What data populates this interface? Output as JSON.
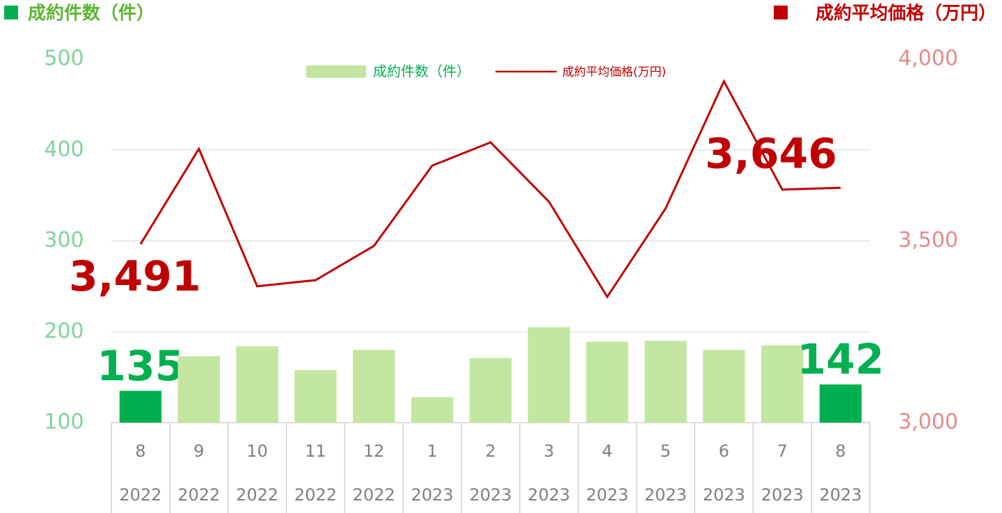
{
  "chart_data": {
    "type": "bar-line",
    "left_axis_title": "成約件数（件）",
    "right_axis_title": "成約平均価格（万円）",
    "categories": [
      "8",
      "9",
      "10",
      "11",
      "12",
      "1",
      "2",
      "3",
      "4",
      "5",
      "6",
      "7",
      "8"
    ],
    "category_years": [
      "2022",
      "2022",
      "2022",
      "2022",
      "2022",
      "2023",
      "2023",
      "2023",
      "2023",
      "2023",
      "2023",
      "2023",
      "2023"
    ],
    "series": [
      {
        "name": "成約件数（件）",
        "type": "bar",
        "color": "#c3e6a0",
        "highlight_color": "#00b050",
        "labeled": [
          0,
          12
        ],
        "values": [
          135,
          173,
          184,
          158,
          180,
          128,
          171,
          205,
          189,
          190,
          180,
          185,
          142
        ]
      },
      {
        "name": "成約平均価格(万円)",
        "type": "line",
        "axis": "y2",
        "color": "#c00000",
        "values": [
          3491,
          3753,
          3375,
          3392,
          3486,
          3707,
          3771,
          3608,
          3346,
          3589,
          3939,
          3641,
          3646
        ],
        "value_labels": [
          "3,491",
          null,
          null,
          null,
          null,
          null,
          null,
          null,
          null,
          null,
          null,
          null,
          "3,646"
        ]
      }
    ],
    "ylim": [
      100,
      500
    ],
    "yticks": [
      100,
      200,
      300,
      400,
      500
    ],
    "y2lim": [
      3000,
      4000
    ],
    "y2ticks": [
      {
        "value": 3000,
        "label": "3,000"
      },
      {
        "value": 3500,
        "label": "3,500"
      },
      {
        "value": 4000,
        "label": "4,000"
      }
    ],
    "grid": true
  }
}
